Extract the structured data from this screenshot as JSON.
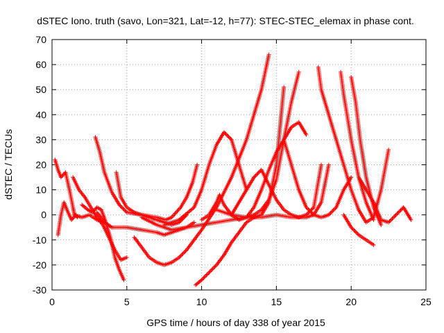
{
  "chart_data": {
    "type": "scatter",
    "title": "dSTEC Iono. truth (savo, Lon=321, Lat=-12, h=77): STEC-STEC_elemax in phase cont.",
    "xlabel": "GPS time / hours of day 338 of year 2015",
    "ylabel": "dSTEC  / TECUs",
    "xlim": [
      0,
      25
    ],
    "ylim": [
      -30,
      70
    ],
    "xticks": [
      0,
      5,
      10,
      15,
      20,
      25
    ],
    "yticks": [
      -30,
      -20,
      -10,
      0,
      10,
      20,
      30,
      40,
      50,
      60,
      70
    ],
    "grid": true,
    "marker": "+",
    "color": "#ff0000",
    "series": [
      {
        "x": [
          0.2,
          0.4,
          0.6,
          0.9,
          1.2,
          1.4,
          1.5,
          1.7
        ],
        "y": [
          22,
          18,
          15,
          17,
          9,
          3,
          0,
          -1
        ]
      },
      {
        "x": [
          0.4,
          0.6,
          0.8,
          1.0,
          1.3,
          1.6
        ],
        "y": [
          -8,
          0,
          5,
          2,
          -2,
          0
        ]
      },
      {
        "x": [
          1.4,
          1.8,
          2.2,
          2.6,
          3.0,
          3.4,
          3.8,
          4.2,
          4.6,
          5.0
        ],
        "y": [
          15,
          10,
          7,
          3,
          -1,
          -4,
          -9,
          -14,
          -18,
          -17
        ]
      },
      {
        "x": [
          2.0,
          2.4,
          2.7,
          3.0,
          3.3,
          3.6,
          3.9,
          4.2,
          4.5,
          4.8
        ],
        "y": [
          4,
          2,
          1,
          3,
          2,
          -3,
          -9,
          -17,
          -22,
          -26
        ]
      },
      {
        "x": [
          2.9,
          3.2,
          3.5,
          4.0,
          4.5,
          5.0,
          6.0,
          7.0,
          7.6,
          8.0,
          8.6,
          9.0,
          9.4,
          9.7
        ],
        "y": [
          31,
          25,
          17,
          9,
          4,
          1,
          0,
          -1,
          -2,
          -1,
          3,
          7,
          13,
          20
        ]
      },
      {
        "x": [
          4.3,
          4.6,
          5.0,
          5.5,
          6.0,
          6.5,
          7.0,
          7.5,
          8.0,
          8.5,
          9.0
        ],
        "y": [
          17,
          7,
          3,
          1,
          0,
          -1,
          -2,
          -3,
          -4,
          -3,
          0
        ]
      },
      {
        "x": [
          1.5,
          2.0,
          2.5,
          3.0,
          3.5,
          4.0
        ],
        "y": [
          0,
          -1,
          0,
          -2,
          -3,
          -5
        ]
      },
      {
        "x": [
          3.0,
          3.5,
          4.0,
          5.0,
          6.0,
          7.0,
          7.5,
          8.0,
          8.5,
          9.0,
          9.5
        ],
        "y": [
          1,
          -3,
          -5,
          -5,
          -6,
          -7,
          -8,
          -7,
          -6,
          -5,
          -3
        ]
      },
      {
        "x": [
          5.5,
          6.0,
          6.5,
          7.0,
          7.5,
          8.0,
          8.5,
          9.0,
          10.0,
          11.0,
          12.0,
          13.0,
          13.5,
          14.0,
          14.5
        ],
        "y": [
          -9,
          -13,
          -17,
          -19,
          -20,
          -19,
          -17,
          -14,
          -6,
          3,
          15,
          30,
          40,
          50,
          64
        ]
      },
      {
        "x": [
          9.6,
          10.0,
          10.5,
          11.0,
          11.5,
          12.0,
          12.5,
          13.0,
          13.5,
          14.0,
          14.5,
          15.0,
          15.5
        ],
        "y": [
          -28,
          -26,
          -23,
          -20,
          -16,
          -11,
          -7,
          -3,
          -1,
          0,
          5,
          20,
          51
        ]
      },
      {
        "x": [
          6.0,
          7.0,
          8.0,
          9.0,
          10.0,
          11.0,
          12.0,
          13.0,
          13.5,
          14.0,
          14.5,
          15.0,
          15.5,
          16.0,
          16.5
        ],
        "y": [
          -1,
          -4,
          -6,
          -5,
          -4,
          -3,
          -2,
          -1,
          0,
          2,
          6,
          14,
          30,
          45,
          57
        ]
      },
      {
        "x": [
          7.5,
          8.5,
          9.5,
          10.0,
          10.5,
          11.0,
          11.5,
          12.0,
          12.5,
          13.0
        ],
        "y": [
          -4,
          -2,
          3,
          10,
          20,
          28,
          33,
          30,
          20,
          10
        ]
      },
      {
        "x": [
          10.0,
          10.5,
          11.0,
          11.2,
          11.5,
          12.0,
          12.5,
          13.0,
          13.5,
          14.0,
          14.5,
          15.0,
          15.5,
          16.0,
          16.5,
          17.0
        ],
        "y": [
          -2,
          0,
          5,
          8,
          4,
          0,
          -2,
          -1,
          3,
          10,
          18,
          25,
          30,
          35,
          37,
          32
        ]
      },
      {
        "x": [
          12.0,
          12.5,
          13.0,
          13.5,
          14.0,
          14.5,
          15.0,
          15.5,
          16.0,
          16.5,
          17.0,
          17.5,
          18.0
        ],
        "y": [
          0,
          5,
          10,
          15,
          18,
          12,
          6,
          2,
          0,
          -1,
          0,
          3,
          20
        ]
      },
      {
        "x": [
          11.0,
          12.0,
          13.0,
          14.0,
          15.0,
          16.0,
          17.0,
          17.5,
          18.0,
          18.5
        ],
        "y": [
          2,
          0,
          -1,
          -1,
          0,
          -1,
          -1,
          0,
          5,
          20
        ]
      },
      {
        "x": [
          15.5,
          16.0,
          16.5,
          17.0,
          17.5,
          18.0,
          18.5,
          19.0,
          19.5,
          20.0
        ],
        "y": [
          30,
          20,
          10,
          3,
          0,
          -1,
          0,
          3,
          10,
          15
        ]
      },
      {
        "x": [
          17.8,
          18.0,
          18.5,
          19.0,
          19.5,
          20.0,
          20.5,
          21.0,
          21.5,
          22.0,
          22.5
        ],
        "y": [
          59,
          50,
          40,
          30,
          20,
          10,
          2,
          -3,
          -1,
          10,
          26
        ]
      },
      {
        "x": [
          19.3,
          19.5,
          20.0,
          20.5,
          21.0,
          21.5
        ],
        "y": [
          57,
          48,
          30,
          15,
          5,
          -2
        ]
      },
      {
        "x": [
          20.0,
          20.3,
          20.6,
          21.0,
          21.5,
          22.0
        ],
        "y": [
          55,
          45,
          30,
          15,
          3,
          -4
        ]
      },
      {
        "x": [
          19.5,
          20.0,
          20.5,
          21.0,
          21.5
        ],
        "y": [
          0,
          -5,
          -8,
          -10,
          -12
        ]
      },
      {
        "x": [
          20.5,
          21.0,
          21.5,
          22.0,
          22.5,
          23.0,
          23.5,
          24.0
        ],
        "y": [
          15,
          10,
          5,
          -2,
          -3,
          0,
          3,
          -2
        ]
      }
    ]
  }
}
